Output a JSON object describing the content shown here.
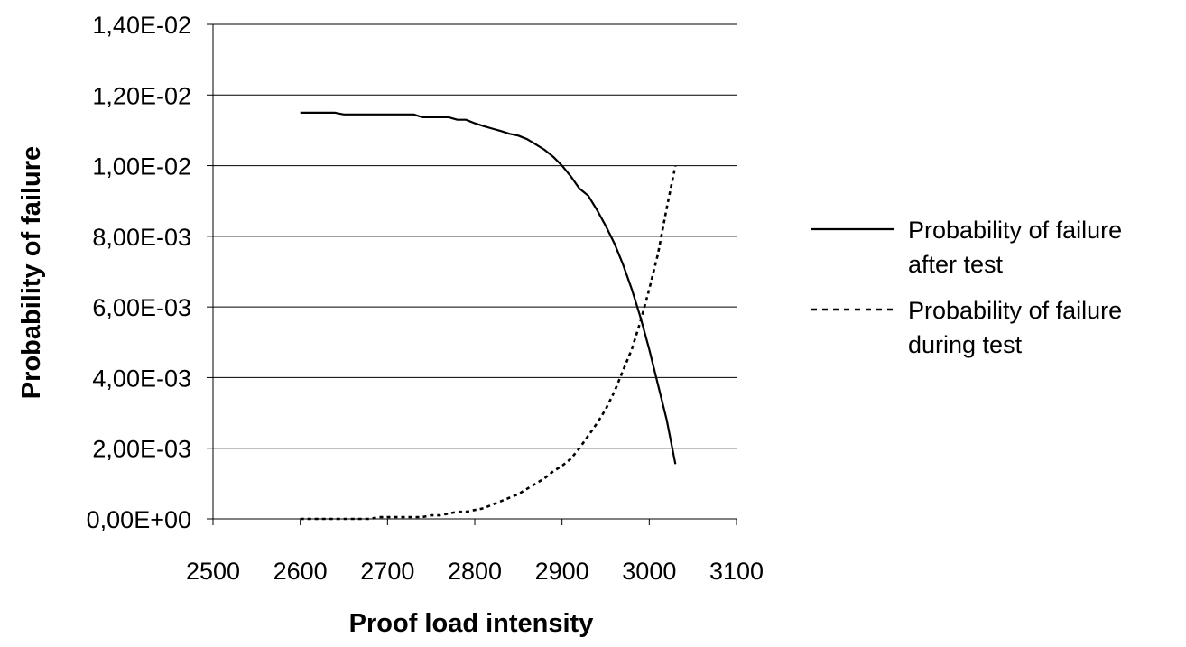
{
  "chart_data": {
    "type": "line",
    "title": "",
    "xlabel": "Proof load intensity",
    "ylabel": "Probability of failure",
    "xlim": [
      2500,
      3100
    ],
    "ylim": [
      0,
      0.014
    ],
    "x_ticks": [
      "2500",
      "2600",
      "2700",
      "2800",
      "2900",
      "3000",
      "3100"
    ],
    "y_ticks": [
      "0,00E+00",
      "2,00E-03",
      "4,00E-03",
      "6,00E-03",
      "8,00E-03",
      "1,00E-02",
      "1,20E-02",
      "1,40E-02"
    ],
    "grid": "horizontal",
    "legend_position": "right",
    "series": [
      {
        "name": "Probability of failure after test",
        "legend_lines": [
          "Probability of failure",
          "after test"
        ],
        "style": "solid",
        "color": "#000000",
        "points": [
          [
            2600,
            0.0115
          ],
          [
            2610,
            0.0115
          ],
          [
            2620,
            0.0115
          ],
          [
            2630,
            0.0115
          ],
          [
            2640,
            0.0115
          ],
          [
            2650,
            0.01145
          ],
          [
            2660,
            0.01145
          ],
          [
            2670,
            0.01145
          ],
          [
            2680,
            0.01145
          ],
          [
            2690,
            0.01145
          ],
          [
            2700,
            0.01145
          ],
          [
            2710,
            0.01145
          ],
          [
            2720,
            0.01145
          ],
          [
            2730,
            0.01145
          ],
          [
            2740,
            0.01137
          ],
          [
            2750,
            0.01137
          ],
          [
            2760,
            0.01137
          ],
          [
            2770,
            0.01137
          ],
          [
            2780,
            0.0113
          ],
          [
            2790,
            0.0113
          ],
          [
            2800,
            0.0112
          ],
          [
            2810,
            0.01112
          ],
          [
            2820,
            0.01105
          ],
          [
            2830,
            0.01098
          ],
          [
            2840,
            0.0109
          ],
          [
            2850,
            0.01085
          ],
          [
            2860,
            0.01075
          ],
          [
            2870,
            0.0106
          ],
          [
            2880,
            0.01045
          ],
          [
            2890,
            0.01025
          ],
          [
            2900,
            0.01
          ],
          [
            2910,
            0.0097
          ],
          [
            2920,
            0.00935
          ],
          [
            2930,
            0.00915
          ],
          [
            2940,
            0.00875
          ],
          [
            2950,
            0.0083
          ],
          [
            2960,
            0.0078
          ],
          [
            2970,
            0.0072
          ],
          [
            2980,
            0.0065
          ],
          [
            2990,
            0.0057
          ],
          [
            3000,
            0.0048
          ],
          [
            3010,
            0.0038
          ],
          [
            3020,
            0.0028
          ],
          [
            3030,
            0.00155
          ]
        ]
      },
      {
        "name": "Probability of failure during test",
        "legend_lines": [
          "Probability of failure",
          "during test"
        ],
        "style": "dotted",
        "color": "#000000",
        "points": [
          [
            2600,
            0.0
          ],
          [
            2610,
            0.0
          ],
          [
            2620,
            0.0
          ],
          [
            2630,
            0.0
          ],
          [
            2640,
            0.0
          ],
          [
            2650,
            0.0
          ],
          [
            2660,
            0.0
          ],
          [
            2670,
            0.0
          ],
          [
            2680,
            0.0
          ],
          [
            2690,
            5e-05
          ],
          [
            2700,
            5e-05
          ],
          [
            2710,
            5e-05
          ],
          [
            2720,
            5e-05
          ],
          [
            2730,
            5e-05
          ],
          [
            2740,
            5e-05
          ],
          [
            2750,
            0.0001
          ],
          [
            2760,
            0.0001
          ],
          [
            2770,
            0.00015
          ],
          [
            2780,
            0.0002
          ],
          [
            2790,
            0.0002
          ],
          [
            2800,
            0.00025
          ],
          [
            2810,
            0.0003
          ],
          [
            2820,
            0.0004
          ],
          [
            2830,
            0.0005
          ],
          [
            2840,
            0.0006
          ],
          [
            2850,
            0.0007
          ],
          [
            2860,
            0.00085
          ],
          [
            2870,
            0.001
          ],
          [
            2880,
            0.00115
          ],
          [
            2890,
            0.00135
          ],
          [
            2900,
            0.0015
          ],
          [
            2910,
            0.0017
          ],
          [
            2920,
            0.002
          ],
          [
            2930,
            0.00235
          ],
          [
            2940,
            0.0027
          ],
          [
            2950,
            0.0031
          ],
          [
            2960,
            0.0036
          ],
          [
            2970,
            0.0042
          ],
          [
            2980,
            0.0048
          ],
          [
            2990,
            0.0056
          ],
          [
            3000,
            0.0065
          ],
          [
            3010,
            0.0075
          ],
          [
            3020,
            0.0088
          ],
          [
            3030,
            0.01
          ]
        ]
      }
    ]
  }
}
